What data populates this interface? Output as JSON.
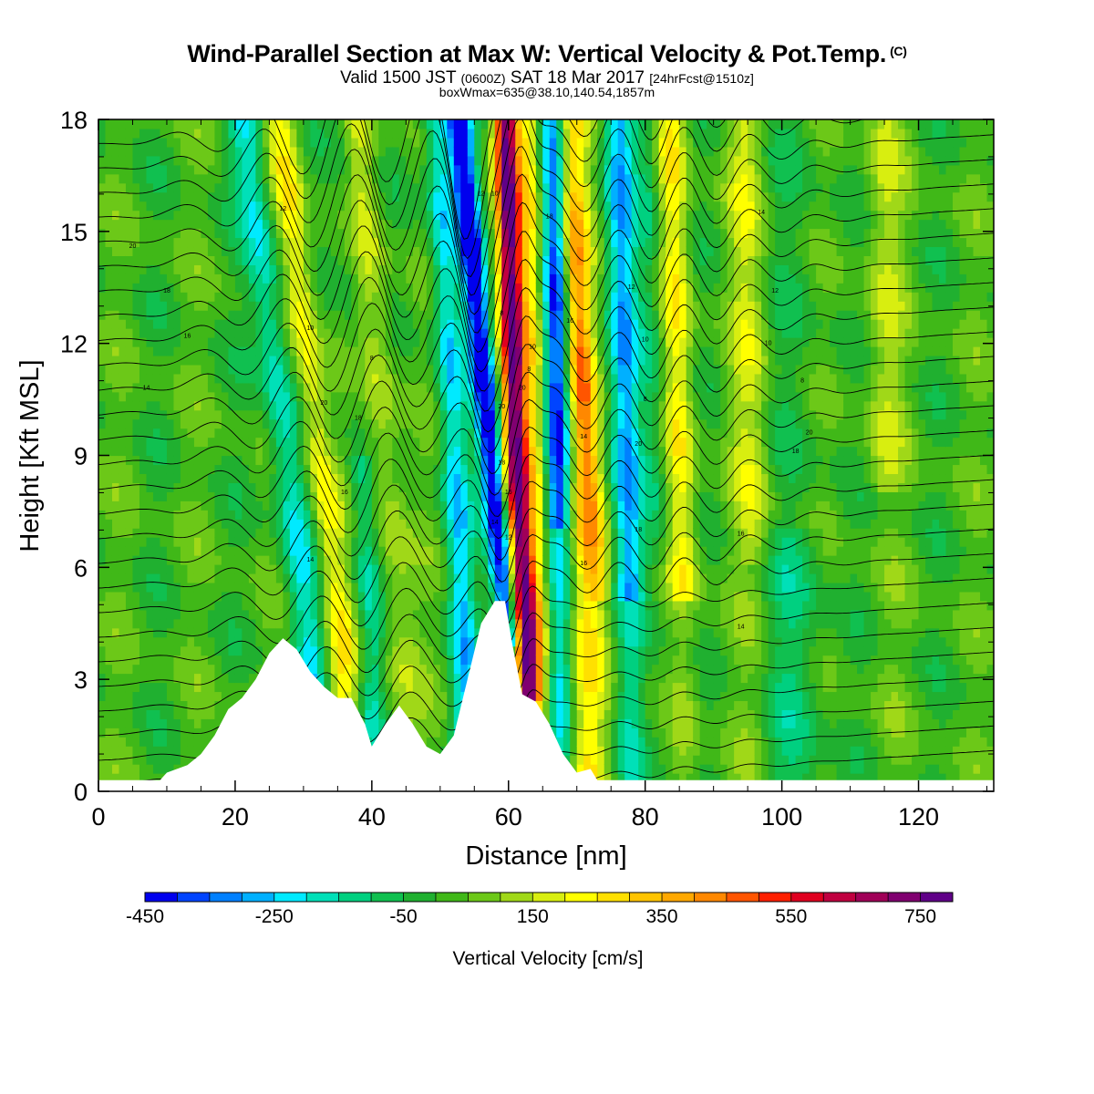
{
  "header": {
    "title": "Wind-Parallel Section at Max W: Vertical Velocity & Pot.Temp.",
    "copyright": "(C)",
    "valid_prefix": "Valid 1500 JST",
    "valid_utc": "(0600Z)",
    "valid_date": "SAT 18 Mar 2017",
    "forecast": "[24hrFcst@1510z]",
    "box_info": "boxWmax=635@38.10,140.54,1857m"
  },
  "chart_data": {
    "type": "heatmap",
    "xlabel": "Distance [nm]",
    "ylabel": "Height [Kft MSL]",
    "xlim": [
      0,
      131
    ],
    "ylim": [
      0,
      18
    ],
    "x_ticks": [
      0,
      20,
      40,
      60,
      80,
      100,
      120
    ],
    "y_ticks": [
      0,
      3,
      6,
      9,
      12,
      15,
      18
    ],
    "colorbar": {
      "label": "Vertical Velocity [cm/s]",
      "tick_labels": [
        "-450",
        "-250",
        "-50",
        "150",
        "350",
        "550",
        "750"
      ],
      "tick_values": [
        -450,
        -250,
        -50,
        150,
        350,
        550,
        750
      ],
      "levels": [
        -450,
        -400,
        -350,
        -300,
        -250,
        -200,
        -150,
        -100,
        -50,
        0,
        50,
        100,
        150,
        200,
        250,
        300,
        350,
        400,
        450,
        500,
        550,
        600,
        650,
        700,
        750,
        800
      ],
      "colors": [
        "#0000ee",
        "#0044ff",
        "#0080ff",
        "#00b0ff",
        "#00eaff",
        "#00e0b8",
        "#00d080",
        "#10c050",
        "#20b030",
        "#40b818",
        "#6cc818",
        "#a0d818",
        "#d8ee10",
        "#ffff00",
        "#ffe000",
        "#ffc400",
        "#ffa800",
        "#ff8800",
        "#ff5500",
        "#ff2000",
        "#e00020",
        "#c00040",
        "#a00058",
        "#800070",
        "#600088"
      ]
    },
    "terrain_heights_kft": [
      [
        0,
        0.3
      ],
      [
        9,
        0.3
      ],
      [
        10,
        0.5
      ],
      [
        13,
        0.7
      ],
      [
        15,
        1.0
      ],
      [
        17,
        1.5
      ],
      [
        19,
        2.2
      ],
      [
        21,
        2.5
      ],
      [
        23,
        3.0
      ],
      [
        25,
        3.7
      ],
      [
        27,
        4.1
      ],
      [
        29,
        3.8
      ],
      [
        31,
        3.2
      ],
      [
        33,
        2.8
      ],
      [
        35,
        2.5
      ],
      [
        37,
        2.5
      ],
      [
        39,
        1.8
      ],
      [
        40,
        1.2
      ],
      [
        42,
        1.8
      ],
      [
        44,
        2.3
      ],
      [
        46,
        1.8
      ],
      [
        48,
        1.2
      ],
      [
        50,
        1.0
      ],
      [
        52,
        1.5
      ],
      [
        54,
        3.0
      ],
      [
        56,
        4.5
      ],
      [
        58,
        5.1
      ],
      [
        59.5,
        5.1
      ],
      [
        60.5,
        4.0
      ],
      [
        62,
        2.6
      ],
      [
        64,
        2.4
      ],
      [
        66,
        1.8
      ],
      [
        68,
        1.0
      ],
      [
        70,
        0.5
      ],
      [
        72,
        0.6
      ],
      [
        73,
        0.3
      ],
      [
        131,
        0.3
      ]
    ],
    "wave_band_centers_nm": [
      35,
      44,
      57,
      63.5,
      68,
      73,
      78,
      87,
      100
    ],
    "theta_contours_visible_labels": [
      "20",
      "18",
      "16",
      "14",
      "12",
      "10",
      "8"
    ],
    "max_updraft_cm_s": 635
  }
}
